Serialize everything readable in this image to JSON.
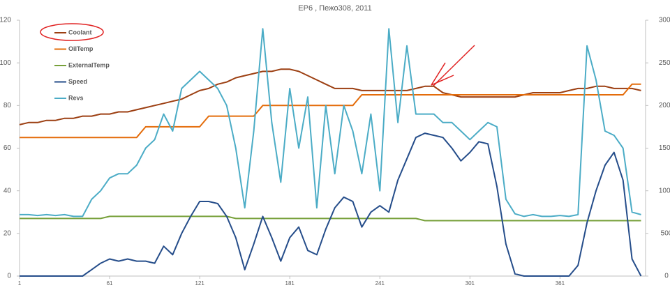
{
  "chart_data": {
    "type": "line",
    "title": "EP6 , Пежо308, 2011",
    "x": [
      1,
      7,
      13,
      19,
      25,
      31,
      37,
      43,
      49,
      55,
      61,
      67,
      73,
      79,
      85,
      91,
      97,
      103,
      109,
      115,
      121,
      127,
      133,
      139,
      145,
      151,
      157,
      163,
      169,
      175,
      181,
      187,
      193,
      199,
      205,
      211,
      217,
      223,
      229,
      235,
      241,
      247,
      253,
      259,
      265,
      271,
      277,
      283,
      289,
      295,
      301,
      307,
      313,
      319,
      325,
      331,
      337,
      343,
      349,
      355,
      361,
      367,
      373,
      379,
      385,
      391,
      397,
      403,
      409,
      415
    ],
    "xlim": [
      1,
      418
    ],
    "xticks": [
      1,
      61,
      121,
      181,
      241,
      301,
      361
    ],
    "ylim": [
      0,
      120
    ],
    "yticks": [
      0,
      20,
      40,
      60,
      80,
      100,
      120
    ],
    "y2lim": [
      0,
      3000
    ],
    "y2ticks": [
      0,
      500,
      1000,
      1500,
      2000,
      2500,
      3000
    ],
    "grid": false,
    "legend": "upper left",
    "series": [
      {
        "name": "Coolant",
        "color": "#9c3f12",
        "values": [
          71,
          72,
          72,
          73,
          73,
          74,
          74,
          75,
          75,
          76,
          76,
          77,
          77,
          78,
          79,
          80,
          81,
          82,
          83,
          85,
          87,
          88,
          90,
          91,
          93,
          94,
          95,
          96,
          96,
          97,
          97,
          96,
          94,
          92,
          90,
          88,
          88,
          88,
          87,
          87,
          87,
          87,
          87,
          87,
          88,
          89,
          89,
          86,
          85,
          84,
          84,
          84,
          84,
          84,
          84,
          84,
          85,
          86,
          86,
          86,
          86,
          87,
          88,
          88,
          89,
          89,
          88,
          88,
          88,
          87
        ]
      },
      {
        "name": "OilTemp",
        "color": "#e46c0a",
        "values": [
          65,
          65,
          65,
          65,
          65,
          65,
          65,
          65,
          65,
          65,
          65,
          65,
          65,
          65,
          70,
          70,
          70,
          70,
          70,
          70,
          70,
          75,
          75,
          75,
          75,
          75,
          75,
          80,
          80,
          80,
          80,
          80,
          80,
          80,
          80,
          80,
          80,
          80,
          85,
          85,
          85,
          85,
          85,
          85,
          85,
          85,
          85,
          85,
          85,
          85,
          85,
          85,
          85,
          85,
          85,
          85,
          85,
          85,
          85,
          85,
          85,
          85,
          85,
          85,
          85,
          85,
          85,
          85,
          90,
          90
        ]
      },
      {
        "name": "ExternalTemp",
        "color": "#77a03a",
        "values": [
          27,
          27,
          27,
          27,
          27,
          27,
          27,
          27,
          27,
          27,
          28,
          28,
          28,
          28,
          28,
          28,
          28,
          28,
          28,
          28,
          28,
          28,
          28,
          28,
          27,
          27,
          27,
          27,
          27,
          27,
          27,
          27,
          27,
          27,
          27,
          27,
          27,
          27,
          27,
          27,
          27,
          27,
          27,
          27,
          27,
          26,
          26,
          26,
          26,
          26,
          26,
          26,
          26,
          26,
          26,
          26,
          26,
          26,
          26,
          26,
          26,
          26,
          26,
          26,
          26,
          26,
          26,
          26,
          26,
          26
        ]
      },
      {
        "name": "Speed",
        "color": "#254d8a",
        "values": [
          0,
          0,
          0,
          0,
          0,
          0,
          0,
          0,
          3,
          6,
          8,
          7,
          8,
          7,
          7,
          6,
          14,
          10,
          20,
          28,
          35,
          35,
          34,
          28,
          18,
          3,
          15,
          28,
          18,
          7,
          18,
          23,
          12,
          10,
          22,
          32,
          37,
          35,
          23,
          30,
          33,
          30,
          45,
          55,
          65,
          67,
          66,
          65,
          60,
          54,
          58,
          63,
          62,
          42,
          15,
          1,
          0,
          0,
          0,
          0,
          0,
          0,
          5,
          25,
          40,
          52,
          58,
          45,
          8,
          0
        ]
      },
      {
        "name": "Revs",
        "color": "#4bacc6",
        "axis": "y2",
        "values": [
          720,
          720,
          710,
          720,
          710,
          720,
          700,
          700,
          900,
          1000,
          1150,
          1200,
          1200,
          1300,
          1500,
          1600,
          1900,
          1700,
          2200,
          2300,
          2400,
          2300,
          2200,
          2000,
          1500,
          800,
          1700,
          2900,
          1800,
          1100,
          2200,
          1500,
          2100,
          800,
          2000,
          1200,
          2000,
          1700,
          1200,
          1900,
          1000,
          2900,
          1800,
          2700,
          1900,
          1900,
          1900,
          1800,
          1800,
          1700,
          1600,
          1700,
          1800,
          1750,
          900,
          730,
          700,
          720,
          700,
          700,
          710,
          700,
          720,
          2700,
          2300,
          1700,
          1650,
          1500,
          750,
          720
        ]
      }
    ]
  }
}
